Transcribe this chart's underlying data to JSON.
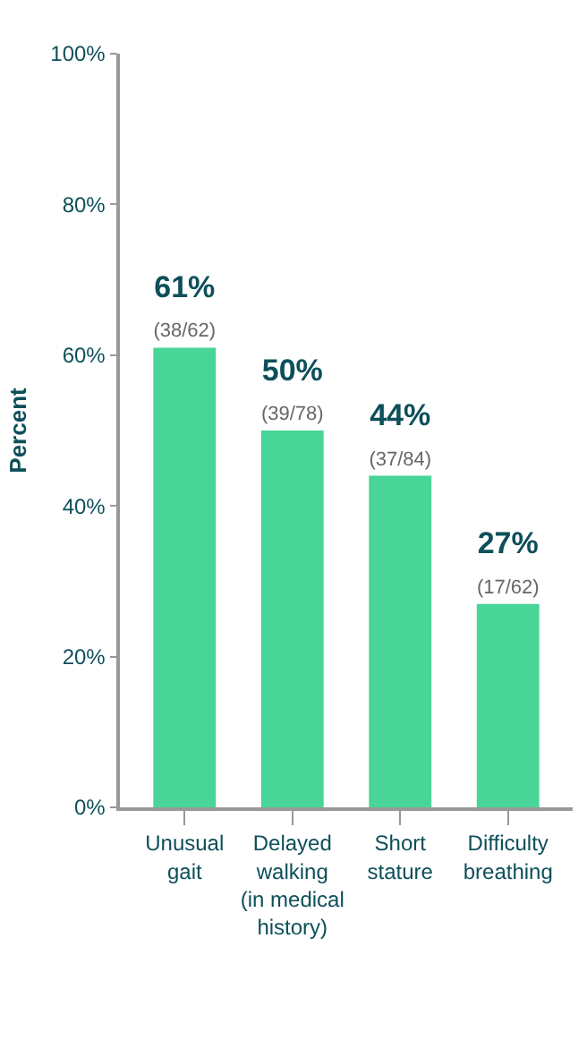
{
  "chart_data": {
    "type": "bar",
    "ylabel": "Percent",
    "categories": [
      "Unusual\ngait",
      "Delayed\nwalking\n(in medical\nhistory)",
      "Short\nstature",
      "Difficulty\nbreathing"
    ],
    "values": [
      61,
      50,
      44,
      27
    ],
    "color": "#48d597",
    "value_labels": [
      "61%\n(38/62)",
      "50%\n(39/78)",
      "44%\n(37/84)",
      "27%\n(17/62)"
    ],
    "ylim": [
      0,
      100
    ],
    "yticks": [
      {
        "value": 0,
        "label": "0%"
      },
      {
        "value": 20,
        "label": "20%"
      },
      {
        "value": 40,
        "label": "40%"
      },
      {
        "value": 60,
        "label": "60%"
      },
      {
        "value": 80,
        "label": "80%"
      },
      {
        "value": 100,
        "label": "100%"
      }
    ],
    "grid": false
  }
}
